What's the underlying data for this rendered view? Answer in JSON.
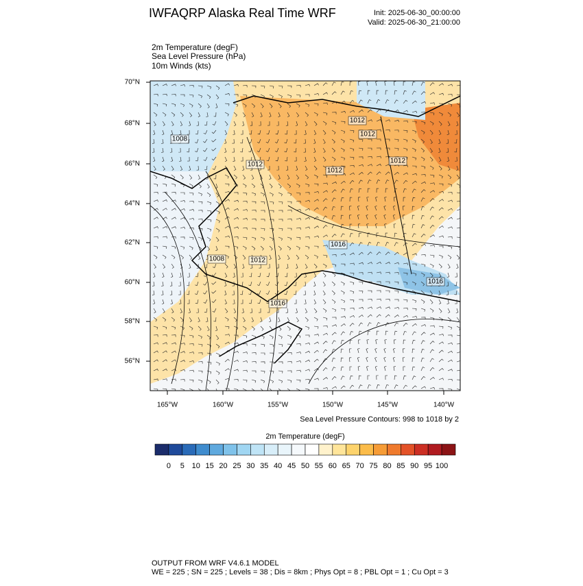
{
  "header": {
    "title": "IWFAQRP Alaska Real Time WRF",
    "init": "Init: 2025-06-30_00:00:00",
    "valid": "Valid: 2025-06-30_21:00:00"
  },
  "fields": [
    "2m Temperature   (degF)",
    "Sea Level Pressure   (hPa)",
    "10m Winds   (kts)"
  ],
  "map": {
    "lat_labels": [
      "70°N",
      "68°N",
      "66°N",
      "64°N",
      "62°N",
      "60°N",
      "58°N",
      "56°N"
    ],
    "lon_labels": [
      "165°W",
      "160°W",
      "155°W",
      "150°W",
      "145°W",
      "140°W"
    ],
    "contour_labels": [
      "1012",
      "1012",
      "1008",
      "1012",
      "1012",
      "1012",
      "1016",
      "1008",
      "1012",
      "1016",
      "1016"
    ]
  },
  "contour_note": "Sea Level Pressure Contours: 998 to 1018 by 2",
  "colorbar": {
    "title": "2m Temperature  (degF)",
    "labels": [
      0,
      5,
      10,
      15,
      20,
      25,
      30,
      35,
      40,
      45,
      50,
      55,
      60,
      65,
      70,
      75,
      80,
      85,
      90,
      95,
      100
    ],
    "colors": [
      "#1b2c6b",
      "#1f4a9a",
      "#2a6bb8",
      "#3f8cce",
      "#5fa9de",
      "#7fc2ea",
      "#a0d6f2",
      "#bfe4f6",
      "#d8eef9",
      "#e9f5fb",
      "#f5f9fc",
      "#ffffff",
      "#fff2cc",
      "#ffe59a",
      "#fdd36c",
      "#fbbc4a",
      "#f69c36",
      "#ef7a2d",
      "#e35228",
      "#cc2f24",
      "#b01b20",
      "#8c1416"
    ]
  },
  "footer": {
    "line1": "OUTPUT FROM WRF V4.6.1 MODEL",
    "line2": "WE = 225 ; SN = 225 ; Levels = 38 ; Dis = 8km ; Phys Opt = 8 ; PBL Opt = 1 ; Cu Opt = 3"
  }
}
